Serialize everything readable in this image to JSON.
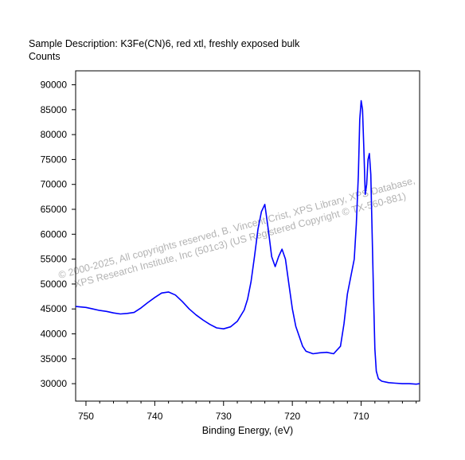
{
  "chart_data": {
    "type": "line",
    "title": "Sample Description:  K3Fe(CN)6, red xtl, freshly exposed bulk",
    "ylabel": "Counts",
    "xlabel": "Binding Energy, (eV)",
    "x_reversed": true,
    "xlim": [
      751.5,
      701.5
    ],
    "ylim": [
      26500,
      92800
    ],
    "x_ticks": [
      750,
      740,
      730,
      720,
      710
    ],
    "x_tick_labels": [
      "750",
      "740",
      "730",
      "720",
      "710"
    ],
    "y_ticks": [
      30000,
      35000,
      40000,
      45000,
      50000,
      55000,
      60000,
      65000,
      70000,
      75000,
      80000,
      85000,
      90000
    ],
    "y_tick_labels": [
      "30000",
      "35000",
      "40000",
      "45000",
      "50000",
      "55000",
      "60000",
      "65000",
      "70000",
      "75000",
      "80000",
      "85000",
      "90000"
    ],
    "line_color": "#0000ff",
    "series": [
      {
        "x": [
          751.5,
          750,
          749,
          748,
          747,
          746,
          745,
          744,
          743,
          742,
          741,
          740,
          739,
          738,
          737,
          736,
          735,
          734,
          733,
          732,
          731,
          730,
          729,
          728,
          727,
          726.5,
          726,
          725.5,
          725,
          724.5,
          724,
          723.5,
          723,
          722.5,
          722,
          721.5,
          721,
          720.5,
          720,
          719.5,
          719,
          718.5,
          718,
          717,
          716,
          715,
          714,
          713,
          712.5,
          712,
          711.5,
          711,
          710.7,
          710.4,
          710.2,
          710,
          709.8,
          709.6,
          709.4,
          709.2,
          709,
          708.8,
          708.6,
          708.4,
          708.2,
          708,
          707.8,
          707.5,
          707,
          706,
          705,
          704,
          703,
          702,
          701.5
        ],
        "y": [
          45500,
          45300,
          45000,
          44700,
          44500,
          44200,
          44000,
          44100,
          44300,
          45200,
          46300,
          47300,
          48200,
          48400,
          47800,
          46500,
          45000,
          43800,
          42800,
          41900,
          41200,
          41000,
          41400,
          42500,
          44800,
          47000,
          50500,
          55500,
          61000,
          64500,
          66000,
          61000,
          55500,
          53500,
          55500,
          57000,
          55000,
          50000,
          45000,
          41500,
          39500,
          37500,
          36500,
          36000,
          36200,
          36300,
          36000,
          37500,
          42000,
          48000,
          51500,
          55000,
          62000,
          72000,
          83000,
          86800,
          85000,
          77000,
          68000,
          70000,
          75000,
          76200,
          72000,
          60000,
          48000,
          37000,
          32500,
          31000,
          30500,
          30200,
          30100,
          30000,
          30000,
          29900,
          30000
        ]
      }
    ],
    "watermark": [
      "© 2000-2025,  All copyrights reserved,   B. Vincent Crist,  XPS Library,  XPS Database,",
      "XPS Research Institute, Inc (501c3)   (US Registered Copyright © TX-560-881)"
    ]
  }
}
